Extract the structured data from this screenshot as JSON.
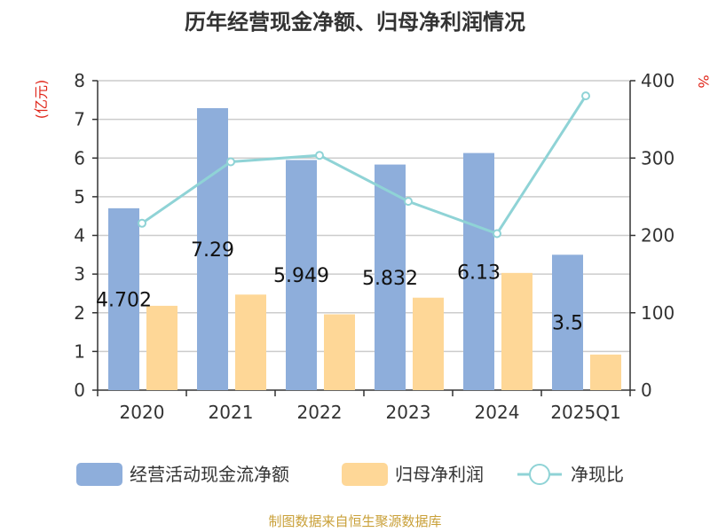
{
  "chart_data": {
    "type": "bar",
    "title": "历年经营现金净额、归母净利润情况",
    "categories": [
      "2020",
      "2021",
      "2022",
      "2023",
      "2024",
      "2025Q1"
    ],
    "series": [
      {
        "name": "经营活动现金流净额",
        "type": "bar",
        "axis": "left",
        "color": "#8eaedb",
        "values": [
          4.702,
          7.29,
          5.949,
          5.832,
          6.13,
          3.5
        ],
        "labels": [
          "4.702",
          "7.29",
          "5.949",
          "5.832",
          "6.13",
          "3.5"
        ]
      },
      {
        "name": "归母净利润",
        "type": "bar",
        "axis": "left",
        "color": "#fed797",
        "values": [
          2.18,
          2.47,
          1.96,
          2.39,
          3.03,
          0.92
        ]
      },
      {
        "name": "净现比",
        "type": "line",
        "axis": "right",
        "color": "#8fd3d6",
        "values": [
          215.7,
          295.1,
          303.5,
          244.0,
          202.3,
          380.4
        ]
      }
    ],
    "y_left": {
      "unit": "(亿元)",
      "min": 0,
      "max": 8,
      "ticks": [
        "0",
        "1",
        "2",
        "3",
        "4",
        "5",
        "6",
        "7",
        "8"
      ]
    },
    "y_right": {
      "unit": "%",
      "min": 0,
      "max": 400,
      "ticks": [
        "0",
        "100",
        "200",
        "300",
        "400"
      ]
    },
    "grid": true,
    "legend_position": "bottom"
  },
  "source": "制图数据来自恒生聚源数据库"
}
